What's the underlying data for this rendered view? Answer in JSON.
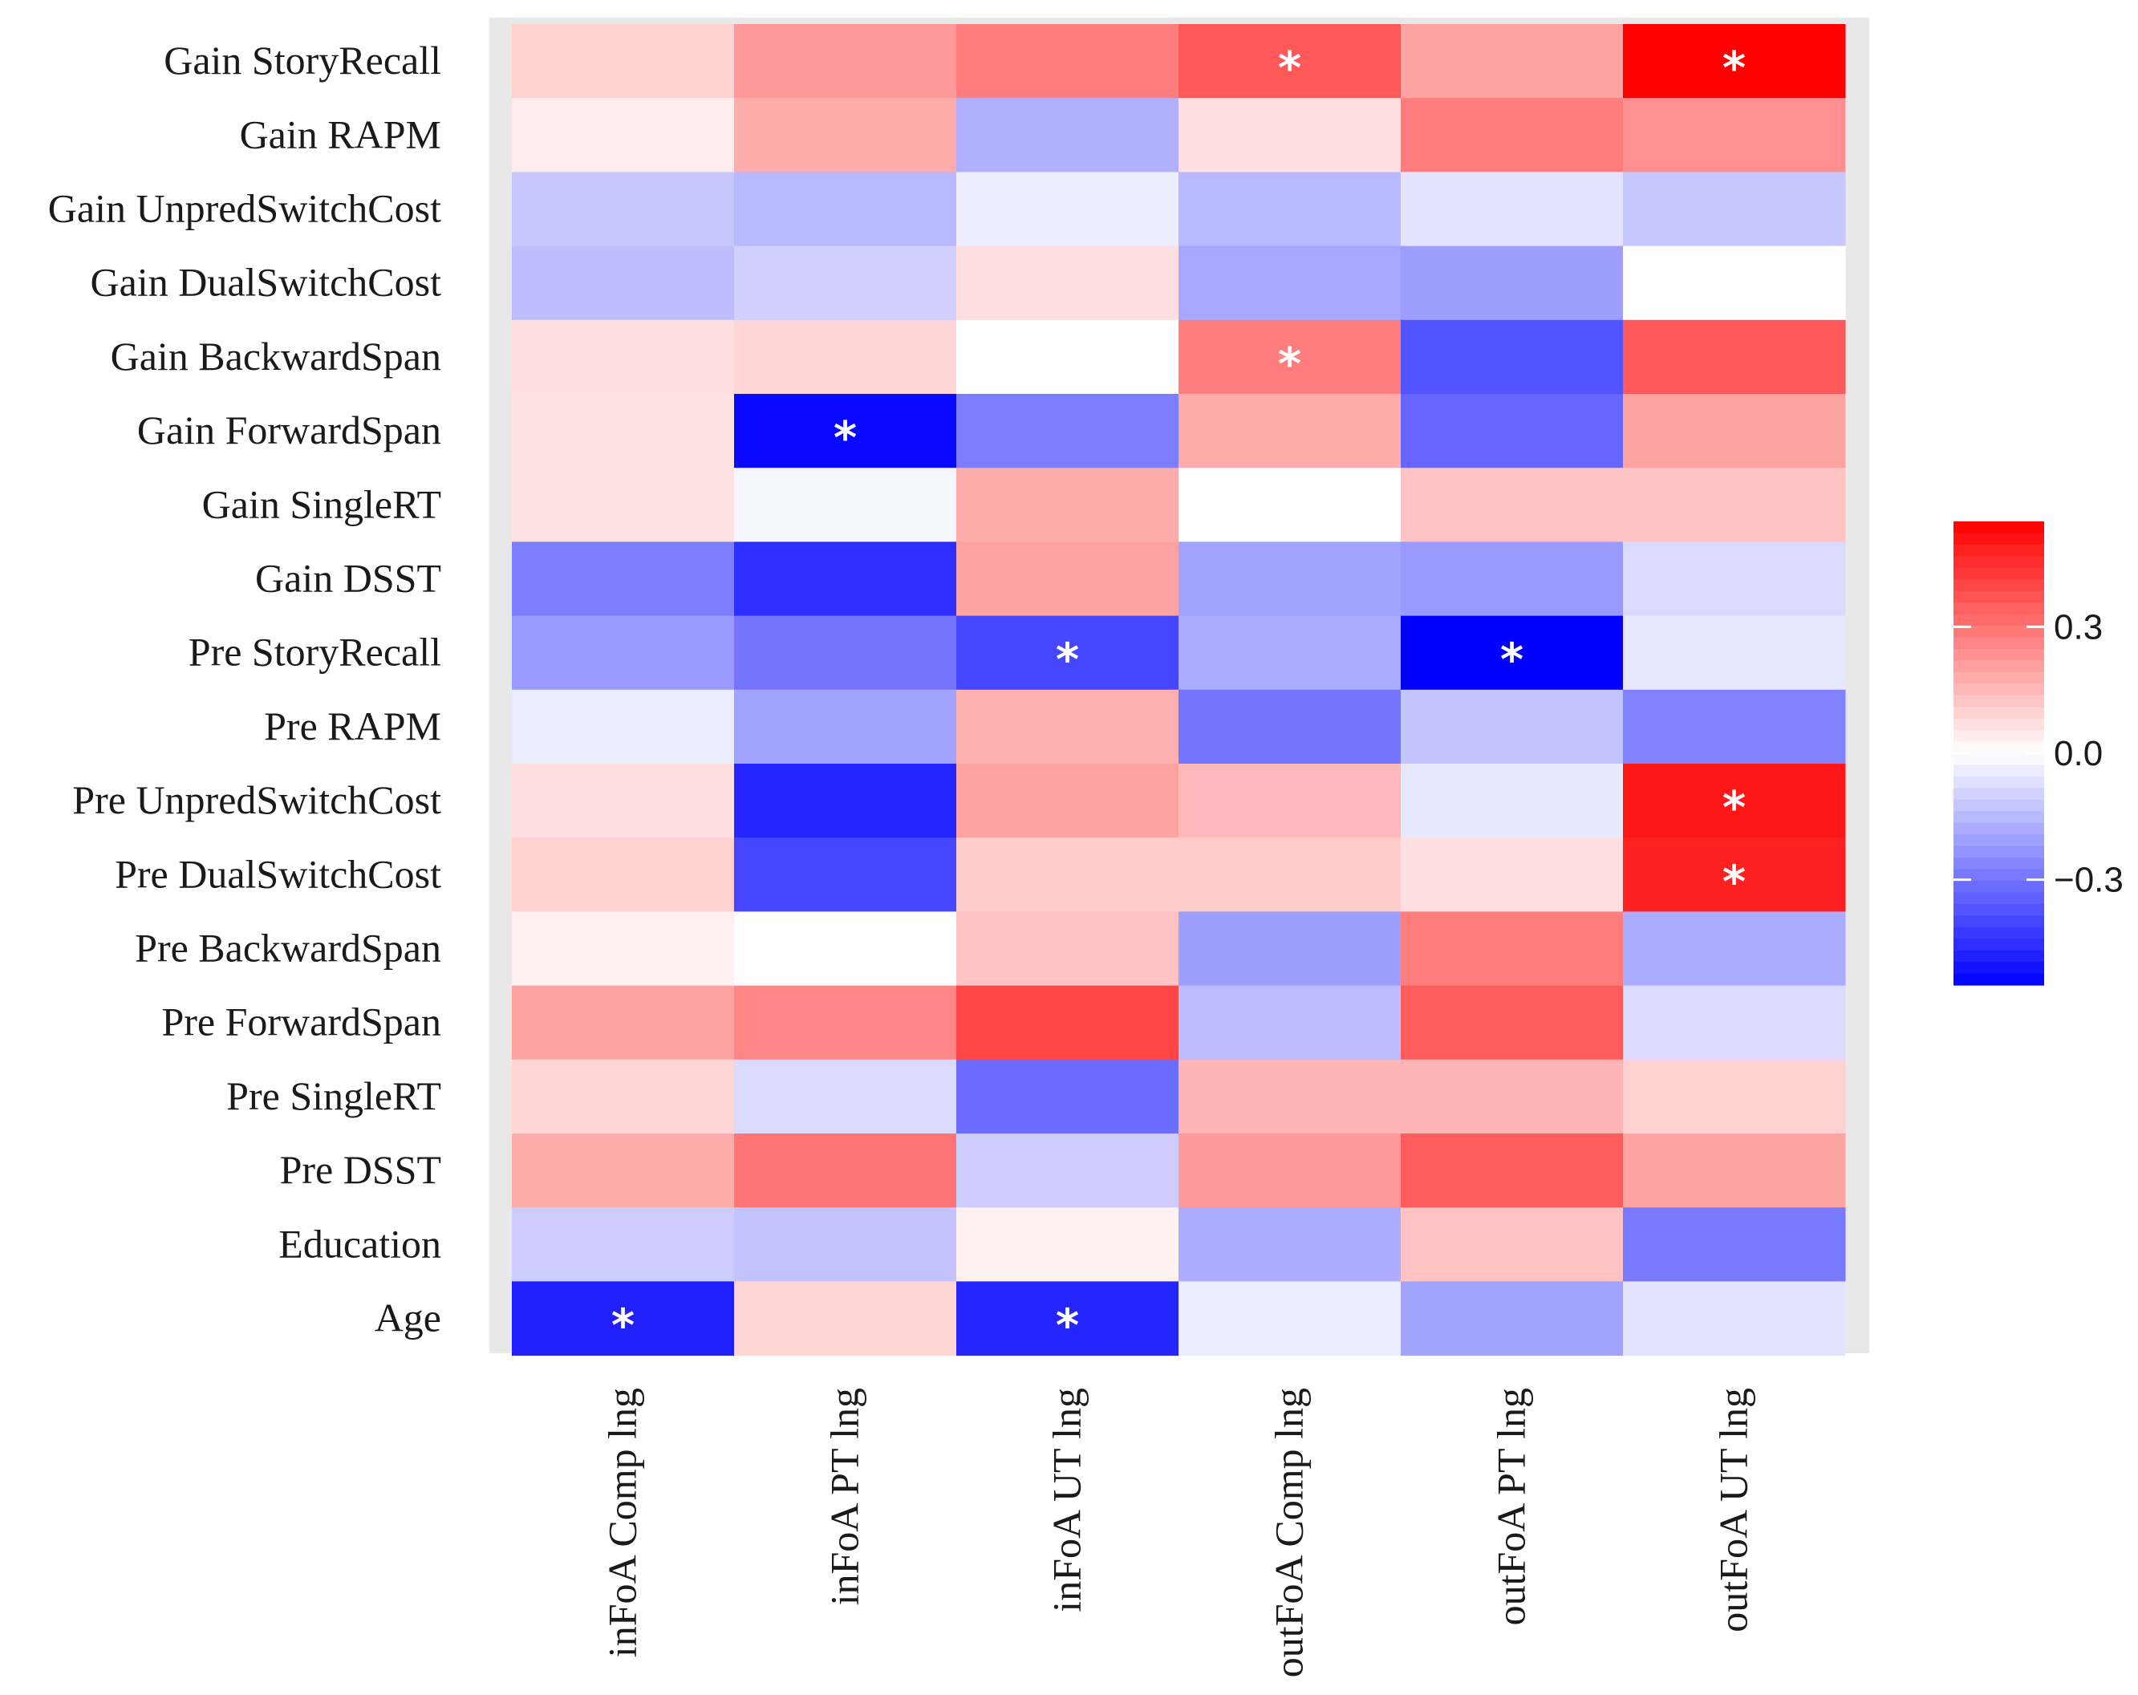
{
  "chart_data": {
    "type": "heatmap",
    "title": "",
    "rows": [
      "Gain StoryRecall",
      "Gain RAPM",
      "Gain UnpredSwitchCost",
      "Gain DualSwitchCost",
      "Gain BackwardSpan",
      "Gain ForwardSpan",
      "Gain SingleRT",
      "Gain DSST",
      "Pre StoryRecall",
      "Pre RAPM",
      "Pre UnpredSwitchCost",
      "Pre DualSwitchCost",
      "Pre BackwardSpan",
      "Pre ForwardSpan",
      "Pre SingleRT",
      "Pre DSST",
      "Education",
      "Age"
    ],
    "columns": [
      "inFoA Comp lng",
      "inFoA PT  lng",
      "inFoA UT  lng",
      "outFoA Comp lng",
      "outFoA PT  lng",
      "outFoA UT  lng"
    ],
    "values": [
      [
        0.1,
        0.22,
        0.28,
        0.36,
        0.2,
        0.55
      ],
      [
        0.04,
        0.18,
        -0.17,
        0.07,
        0.28,
        0.24
      ],
      [
        -0.12,
        -0.15,
        -0.04,
        -0.15,
        -0.06,
        -0.12
      ],
      [
        -0.14,
        -0.1,
        0.07,
        -0.19,
        -0.21,
        0.0
      ],
      [
        0.07,
        0.09,
        0.0,
        0.28,
        -0.37,
        0.36
      ],
      [
        0.06,
        -0.53,
        -0.28,
        0.18,
        -0.33,
        0.2
      ],
      [
        0.06,
        -0.02,
        0.18,
        0.0,
        0.13,
        0.13
      ],
      [
        -0.28,
        -0.45,
        0.2,
        -0.2,
        -0.22,
        -0.08
      ],
      [
        -0.22,
        -0.3,
        -0.4,
        -0.18,
        -0.55,
        -0.05
      ],
      [
        -0.04,
        -0.2,
        0.17,
        -0.3,
        -0.13,
        -0.27
      ],
      [
        0.07,
        -0.47,
        0.2,
        0.15,
        -0.05,
        0.5
      ],
      [
        0.1,
        -0.4,
        0.11,
        0.11,
        0.07,
        0.48
      ],
      [
        0.03,
        0.0,
        0.13,
        -0.21,
        0.28,
        -0.18
      ],
      [
        0.2,
        0.26,
        0.4,
        -0.14,
        0.35,
        -0.08
      ],
      [
        0.09,
        -0.08,
        -0.32,
        0.16,
        0.16,
        0.1
      ],
      [
        0.18,
        0.3,
        -0.11,
        0.22,
        0.35,
        0.2
      ],
      [
        -0.11,
        -0.13,
        0.03,
        -0.18,
        0.13,
        -0.29
      ],
      [
        -0.48,
        0.09,
        -0.47,
        -0.04,
        -0.2,
        -0.06
      ]
    ],
    "significant": [
      [
        0,
        3
      ],
      [
        0,
        5
      ],
      [
        4,
        3
      ],
      [
        5,
        1
      ],
      [
        8,
        2
      ],
      [
        8,
        4
      ],
      [
        10,
        5
      ],
      [
        11,
        5
      ],
      [
        17,
        0
      ],
      [
        17,
        2
      ]
    ],
    "significance_marker": "*",
    "colorbar": {
      "range": [
        -0.55,
        0.55
      ],
      "ticks": [
        {
          "value": 0.3,
          "label": "0.3"
        },
        {
          "value": 0.0,
          "label": "0.0"
        },
        {
          "value": -0.3,
          "label": "−0.3"
        }
      ],
      "low_color": "#0000ff",
      "mid_color": "#ffffff",
      "high_color": "#ff0000",
      "placement": "right"
    },
    "panel_background": "#e8e8e8",
    "grid": true
  }
}
